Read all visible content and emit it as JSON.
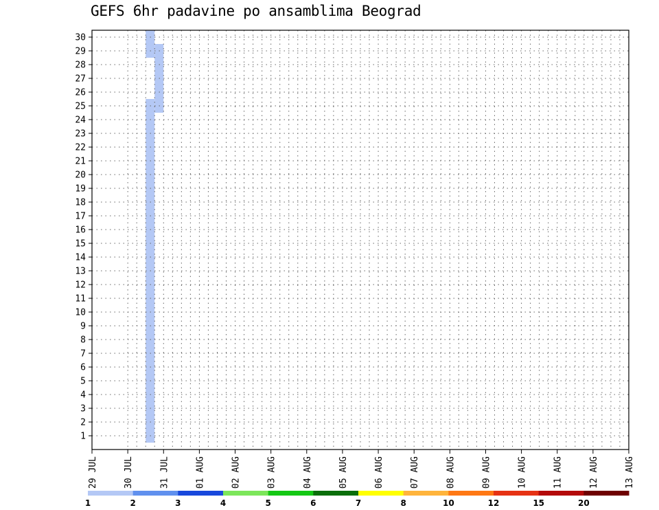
{
  "chart_data": {
    "type": "heatmap",
    "title": "GEFS 6hr padavine po ansamblima Beograd",
    "x_tick_labels": [
      "29 JUL",
      "30 JUL",
      "31 JUL",
      "01 AUG",
      "02 AUG",
      "03 AUG",
      "04 AUG",
      "05 AUG",
      "06 AUG",
      "07 AUG",
      "08 AUG",
      "09 AUG",
      "10 AUG",
      "11 AUG",
      "12 AUG",
      "13 AUG"
    ],
    "x_range_6h_steps": [
      0,
      60
    ],
    "y_tick_labels": [
      "1",
      "2",
      "3",
      "4",
      "5",
      "6",
      "7",
      "8",
      "9",
      "10",
      "11",
      "12",
      "13",
      "14",
      "15",
      "16",
      "17",
      "18",
      "19",
      "20",
      "21",
      "22",
      "23",
      "24",
      "25",
      "26",
      "27",
      "28",
      "29",
      "30"
    ],
    "y_range": [
      0,
      30
    ],
    "grid": true,
    "color_scale": {
      "labels": [
        "1",
        "2",
        "3",
        "4",
        "5",
        "6",
        "7",
        "8",
        "10",
        "12",
        "15",
        "20"
      ],
      "colors": [
        "#b4c8f5",
        "#6090ee",
        "#1848dc",
        "#7ce65a",
        "#14c814",
        "#0a6e0a",
        "#ffff00",
        "#ffb43c",
        "#ff7814",
        "#e63214",
        "#b40a0a",
        "#6e0000"
      ]
    },
    "cells": [
      [
        6,
        30,
        1
      ],
      [
        6,
        29,
        1
      ],
      [
        7,
        29,
        1
      ],
      [
        7,
        28,
        1
      ],
      [
        7,
        27,
        1
      ],
      [
        7,
        26,
        1
      ],
      [
        7,
        25,
        1
      ],
      [
        6,
        25,
        1
      ],
      [
        6,
        24,
        1
      ],
      [
        6,
        23,
        1
      ],
      [
        6,
        22,
        1
      ],
      [
        6,
        21,
        1
      ],
      [
        6,
        20,
        1
      ],
      [
        6,
        19,
        1
      ],
      [
        6,
        18,
        1
      ],
      [
        6,
        17,
        1
      ],
      [
        6,
        16,
        1
      ],
      [
        6,
        15,
        1
      ],
      [
        6,
        14,
        1
      ],
      [
        6,
        13,
        1
      ],
      [
        6,
        12,
        1
      ],
      [
        6,
        11,
        1
      ],
      [
        6,
        10,
        1
      ],
      [
        6,
        9,
        1
      ],
      [
        6,
        8,
        1
      ],
      [
        6,
        7,
        1
      ],
      [
        6,
        6,
        1
      ],
      [
        6,
        5,
        1
      ],
      [
        6,
        4,
        1
      ],
      [
        6,
        3,
        1
      ],
      [
        6,
        2,
        1
      ],
      [
        6,
        1,
        1
      ]
    ]
  }
}
